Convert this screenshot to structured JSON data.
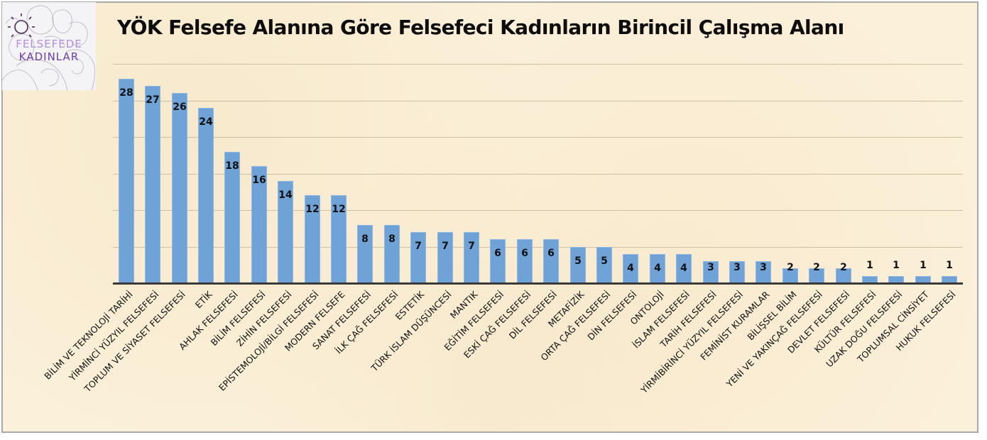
{
  "header": {
    "title": "YÖK Felsefe Alanına Göre Felsefeci Kadınların Birincil Çalışma Alanı",
    "logo": {
      "line1": "FELSEFEDE",
      "line2": "KADINLAR",
      "icon": "sun-icon"
    }
  },
  "colors": {
    "background": "#fbf0d9",
    "bar": "#6fa3d8",
    "gridline": "#cdbfa3",
    "axis": "#3a3a3a",
    "logo_light_purple": "#b08fe0",
    "logo_dark_purple": "#6b3fa8"
  },
  "chart_data": {
    "type": "bar",
    "title": "YÖK Felsefe Alanına Göre Felsefeci Kadınların Birincil Çalışma Alanı",
    "xlabel": "",
    "ylabel": "",
    "ylim": [
      0,
      30
    ],
    "grid": true,
    "gridlines": [
      5,
      10,
      15,
      20,
      25,
      30
    ],
    "y_tick_labels_visible": false,
    "legend": null,
    "data_labels": "inside_end",
    "categories": [
      "BİLİM VE TEKNOLOJİ TARİHİ",
      "YİRMİNCİ YÜZYIL FELSEFESİ",
      "TOPLUM VE SİYASET FELSEFESİ",
      "ETİK",
      "AHLAK FELSEFESİ",
      "BİLİM FELSEFESİ",
      "ZİHİN FELSEFESİ",
      "EPİSTEMOLOJİ/BİLGİ FELSEFESİ",
      "MODERN FELSEFE",
      "SANAT FELSEFESİ",
      "İLK ÇAĞ FELSEFESİ",
      "ESTETİK",
      "TÜRK İSLAM DÜŞÜNCESİ",
      "MANTIK",
      "EĞİTİM FELSEFESİ",
      "ESKİ ÇAĞ FELSEFESİ",
      "DİL FELSEFESİ",
      "METAFİZİK",
      "ORTA ÇAĞ FELSEFESİ",
      "DİN FELSEFESİ",
      "ONTOLOJİ",
      "İSLAM FELSEFESİ",
      "TARİH FELSEFESİ",
      "YİRMİBİRİNCİ YÜZYIL FELSEFESİ",
      "FEMİNİST KURAMLAR",
      "BİLİŞSEL BİLİM",
      "YENİ VE YAKINÇAĞ FELSEFESİ",
      "DEVLET FELSEFESİ",
      "KÜLTÜR FELSEFESİ",
      "UZAK DOĞU FELSEFESİ",
      "TOPLUMSAL CİNSİYET",
      "HUKUK FELSEFESİ"
    ],
    "values": [
      28,
      27,
      26,
      24,
      18,
      16,
      14,
      12,
      12,
      8,
      8,
      7,
      7,
      7,
      6,
      6,
      6,
      5,
      5,
      4,
      4,
      4,
      3,
      3,
      3,
      2,
      2,
      2,
      1,
      1,
      1,
      1
    ]
  }
}
